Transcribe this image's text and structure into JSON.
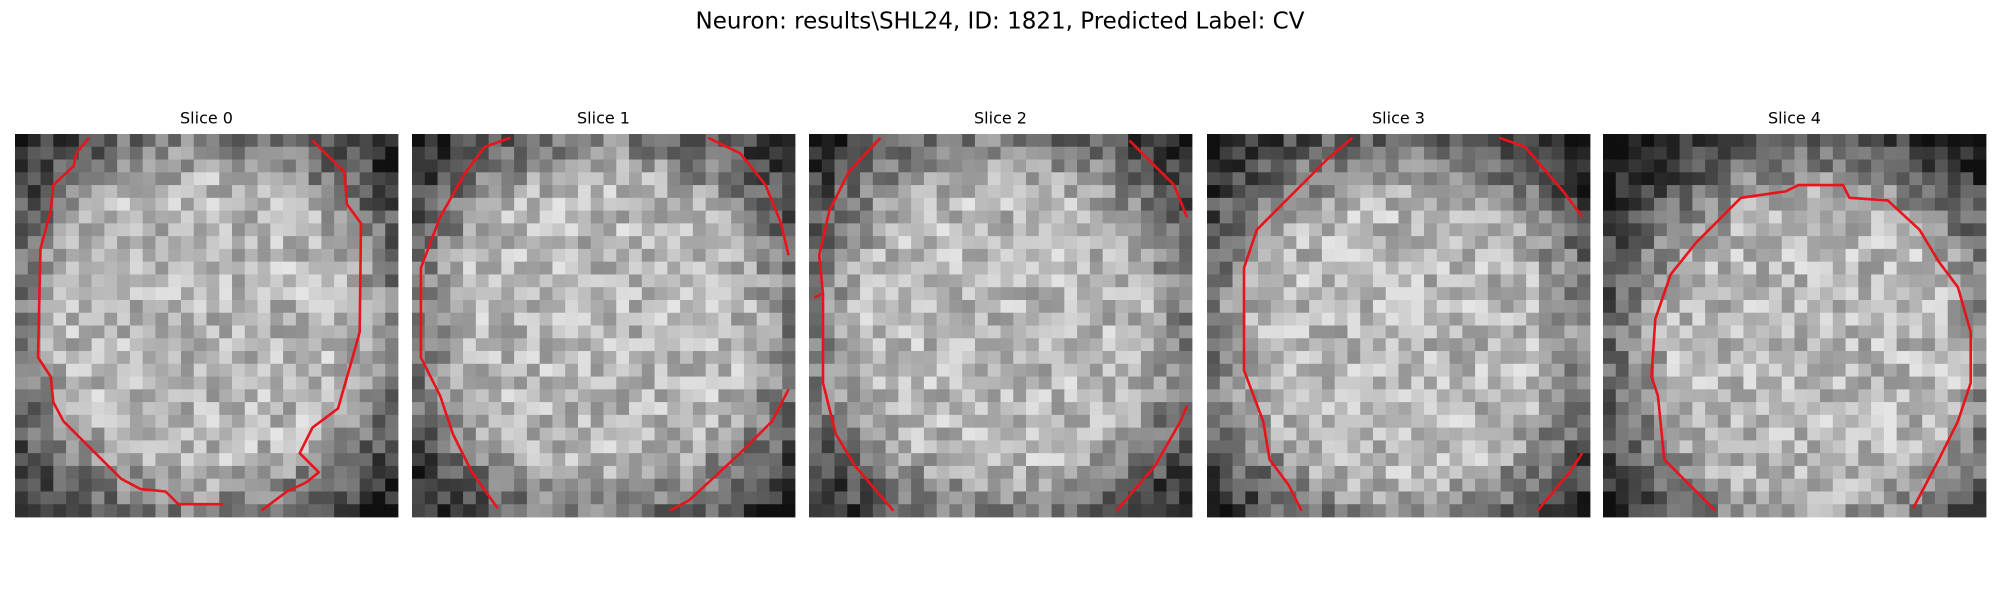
{
  "title": "Neuron: results\\SHL24, ID: 1821, Predicted Label: CV",
  "panels": [
    {
      "title": "Slice 0"
    },
    {
      "title": "Slice 1"
    },
    {
      "title": "Slice 2"
    },
    {
      "title": "Slice 3"
    },
    {
      "title": "Slice 4"
    }
  ]
}
